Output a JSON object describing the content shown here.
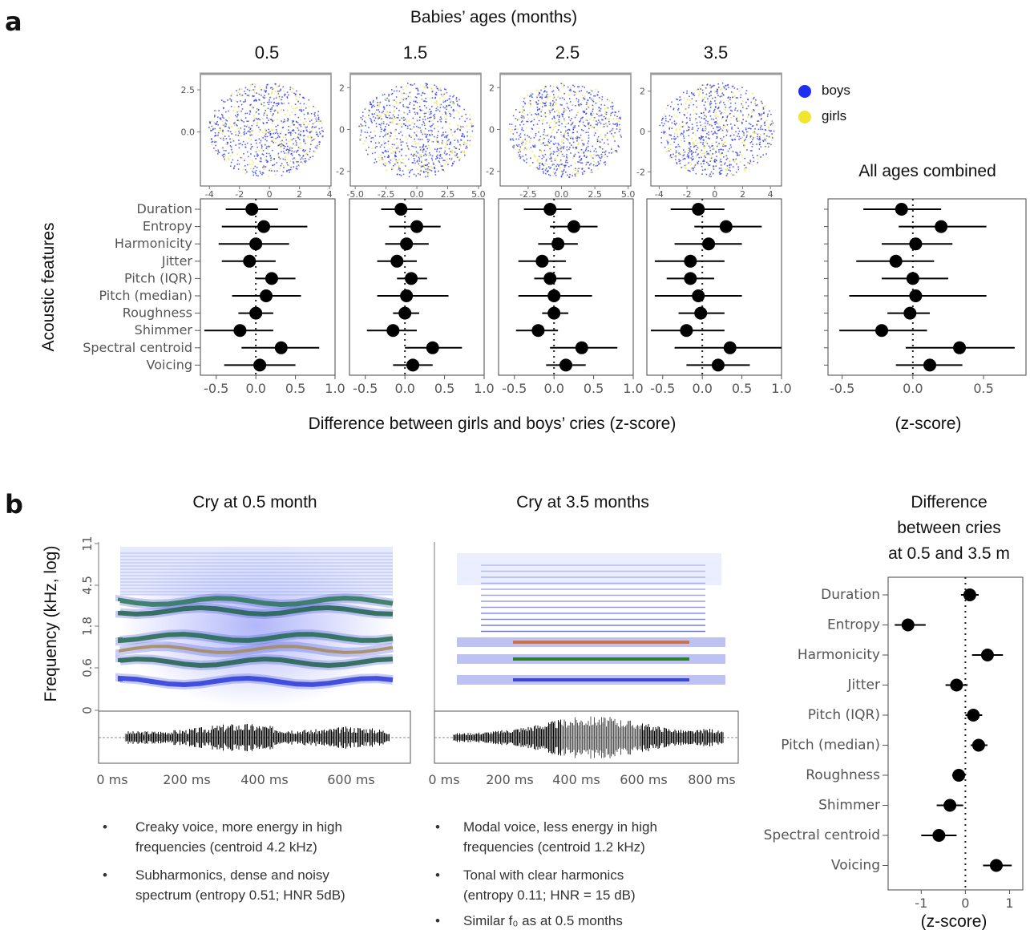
{
  "panel_labels": {
    "a": "a",
    "b": "b"
  },
  "header": {
    "ages_title": "Babies’ ages (months)",
    "all_ages_title": "All ages combined"
  },
  "legend": [
    {
      "label": "boys",
      "color": "#1f2ff0"
    },
    {
      "label": "girls",
      "color": "#f2e530"
    }
  ],
  "a_axes": {
    "ylabel": "Acoustic features",
    "xlabel": "Difference between girls and boys’ cries (z-score)",
    "combined_xlabel": "(z-score)"
  },
  "b_text": {
    "title_left": "Cry at 0.5 month",
    "title_mid": "Cry at 3.5 months",
    "title_right": [
      "Difference",
      "between cries",
      "at 0.5 and 3.5 m"
    ],
    "freq_ylabel": "Frequency (kHz, log)",
    "freq_ticks": [
      "11",
      "4.5",
      "1.8",
      "0.6",
      "0"
    ],
    "time_ticks_left": [
      "0 ms",
      "200 ms",
      "400 ms",
      "600 ms"
    ],
    "time_ticks_mid": [
      "0 ms",
      "200 ms",
      "400 ms",
      "600 ms",
      "800 ms"
    ],
    "right_xlabel": "(z-score)",
    "bullets_left": [
      [
        "Creaky voice, more energy in high",
        "frequencies (centroid 4.2 kHz)"
      ],
      [
        "Subharmonics, dense and noisy",
        "spectrum (entropy 0.51; HNR 5dB)"
      ]
    ],
    "bullets_mid": [
      [
        "Modal voice, less energy in high",
        "frequencies (centroid 1.2 kHz)"
      ],
      [
        "Tonal with clear harmonics",
        "(entropy 0.11; HNR = 15 dB)"
      ],
      [
        "Similar f₀ as at 0.5 months"
      ]
    ]
  },
  "chart_data": [
    {
      "type": "scatter",
      "ages": [
        "0.5",
        "1.5",
        "2.5",
        "3.5"
      ],
      "series": [
        {
          "name": "boys"
        },
        {
          "name": "girls"
        }
      ],
      "umap_panels": [
        {
          "age": "0.5",
          "xticks": [
            -4,
            -2,
            0,
            2,
            4
          ],
          "yticks": [
            2.5,
            0.0
          ],
          "ytick_labels": [
            "2.5",
            "0.0"
          ]
        },
        {
          "age": "1.5",
          "xticks": [
            -5.0,
            -2.5,
            0.0,
            2.5,
            5.0
          ],
          "yticks": [
            2,
            0,
            -2
          ],
          "ytick_labels": [
            "2",
            "0",
            "-2"
          ]
        },
        {
          "age": "2.5",
          "xticks": [
            -2.5,
            0.0,
            2.5,
            5.0
          ],
          "yticks": [
            2,
            0,
            -2
          ],
          "ytick_labels": [
            "2",
            "0",
            "-2"
          ]
        },
        {
          "age": "3.5",
          "xticks": [
            -4,
            -2,
            0,
            2,
            4
          ],
          "yticks": [
            2,
            0,
            -2
          ],
          "ytick_labels": [
            "2",
            "0",
            "-2"
          ]
        }
      ]
    },
    {
      "type": "scatter",
      "subtype": "forest",
      "features": [
        "Duration",
        "Entropy",
        "Harmonicity",
        "Jitter",
        "Pitch (IQR)",
        "Pitch (median)",
        "Roughness",
        "Shimmer",
        "Spectral centroid",
        "Voicing"
      ],
      "xlim": [
        -0.7,
        1.0
      ],
      "xticks": [
        -0.5,
        0.0,
        0.5,
        1.0
      ],
      "xtick_labels": [
        "-0.5",
        "0.0",
        "0.5",
        "1.0"
      ],
      "panels": [
        {
          "age": "0.5",
          "estimate": [
            -0.05,
            0.1,
            0.0,
            -0.08,
            0.2,
            0.13,
            0.0,
            -0.2,
            0.32,
            0.05
          ],
          "lower": [
            -0.38,
            -0.43,
            -0.47,
            -0.43,
            0.0,
            -0.3,
            -0.22,
            -0.65,
            -0.18,
            -0.4
          ],
          "upper": [
            0.28,
            0.65,
            0.42,
            0.25,
            0.5,
            0.57,
            0.22,
            0.22,
            0.8,
            0.5
          ]
        },
        {
          "age": "1.5",
          "estimate": [
            -0.05,
            0.15,
            0.02,
            -0.1,
            0.08,
            0.02,
            0.0,
            -0.15,
            0.35,
            0.1
          ],
          "lower": [
            -0.3,
            -0.2,
            -0.25,
            -0.35,
            -0.1,
            -0.35,
            -0.15,
            -0.48,
            0.0,
            -0.15
          ],
          "upper": [
            0.22,
            0.45,
            0.3,
            0.15,
            0.28,
            0.55,
            0.18,
            0.15,
            0.72,
            0.35
          ]
        },
        {
          "age": "2.5",
          "estimate": [
            -0.05,
            0.25,
            0.05,
            -0.15,
            -0.05,
            0.0,
            0.0,
            -0.2,
            0.35,
            0.15
          ],
          "lower": [
            -0.38,
            -0.05,
            -0.2,
            -0.45,
            -0.25,
            -0.45,
            -0.15,
            -0.48,
            -0.05,
            -0.1
          ],
          "upper": [
            0.22,
            0.55,
            0.3,
            0.15,
            0.22,
            0.48,
            0.18,
            0.05,
            0.8,
            0.4
          ]
        },
        {
          "age": "3.5",
          "estimate": [
            -0.05,
            0.3,
            0.08,
            -0.15,
            -0.15,
            -0.05,
            -0.02,
            -0.2,
            0.35,
            0.2
          ],
          "lower": [
            -0.4,
            -0.1,
            -0.35,
            -0.6,
            -0.45,
            -0.6,
            -0.3,
            -0.65,
            -0.35,
            -0.2
          ],
          "upper": [
            0.28,
            0.75,
            0.5,
            0.28,
            0.15,
            0.5,
            0.28,
            0.28,
            1.0,
            0.6
          ]
        }
      ]
    },
    {
      "type": "scatter",
      "subtype": "forest",
      "title": "All ages combined",
      "xlabel": "(z-score)",
      "xlim": [
        -0.6,
        0.8
      ],
      "xticks": [
        -0.5,
        0.0,
        0.5
      ],
      "xtick_labels": [
        "-0.5",
        "0.0",
        "0.5"
      ],
      "features": [
        "Duration",
        "Entropy",
        "Harmonicity",
        "Jitter",
        "Pitch (IQR)",
        "Pitch (median)",
        "Roughness",
        "Shimmer",
        "Spectral centroid",
        "Voicing"
      ],
      "estimate": [
        -0.08,
        0.2,
        0.02,
        -0.12,
        0.0,
        0.02,
        -0.02,
        -0.22,
        0.33,
        0.12
      ],
      "lower": [
        -0.35,
        -0.1,
        -0.22,
        -0.4,
        -0.22,
        -0.45,
        -0.18,
        -0.52,
        -0.05,
        -0.12
      ],
      "upper": [
        0.2,
        0.52,
        0.28,
        0.15,
        0.25,
        0.52,
        0.12,
        0.1,
        0.72,
        0.35
      ]
    },
    {
      "type": "scatter",
      "subtype": "forest",
      "title": "Difference between cries at 0.5 and 3.5 m",
      "xlabel": "(z-score)",
      "xlim": [
        -1.75,
        1.3
      ],
      "xticks": [
        -1,
        0,
        1
      ],
      "xtick_labels": [
        "-1",
        "0",
        "1"
      ],
      "features": [
        "Duration",
        "Entropy",
        "Harmonicity",
        "Jitter",
        "Pitch (IQR)",
        "Pitch (median)",
        "Roughness",
        "Shimmer",
        "Spectral centroid",
        "Voicing"
      ],
      "estimate": [
        0.1,
        -1.3,
        0.5,
        -0.2,
        0.18,
        0.3,
        -0.15,
        -0.35,
        -0.6,
        0.7
      ],
      "lower": [
        -0.1,
        -1.6,
        0.15,
        -0.45,
        0.0,
        0.12,
        -0.3,
        -0.65,
        -1.0,
        0.4
      ],
      "upper": [
        0.3,
        -0.9,
        0.85,
        0.05,
        0.38,
        0.5,
        0.0,
        -0.05,
        -0.2,
        1.05
      ]
    }
  ]
}
